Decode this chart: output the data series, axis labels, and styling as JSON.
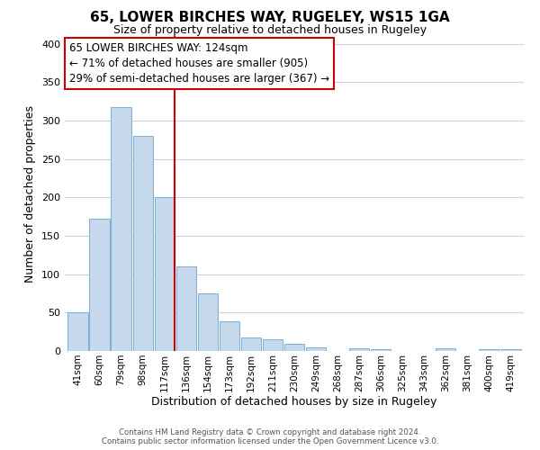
{
  "title": "65, LOWER BIRCHES WAY, RUGELEY, WS15 1GA",
  "subtitle": "Size of property relative to detached houses in Rugeley",
  "xlabel": "Distribution of detached houses by size in Rugeley",
  "ylabel": "Number of detached properties",
  "bar_labels": [
    "41sqm",
    "60sqm",
    "79sqm",
    "98sqm",
    "117sqm",
    "136sqm",
    "154sqm",
    "173sqm",
    "192sqm",
    "211sqm",
    "230sqm",
    "249sqm",
    "268sqm",
    "287sqm",
    "306sqm",
    "325sqm",
    "343sqm",
    "362sqm",
    "381sqm",
    "400sqm",
    "419sqm"
  ],
  "bar_values": [
    50,
    172,
    318,
    280,
    200,
    110,
    75,
    39,
    17,
    15,
    9,
    5,
    0,
    3,
    2,
    0,
    0,
    3,
    0,
    2,
    2
  ],
  "bar_color": "#c6d9ec",
  "bar_edge_color": "#7bafd4",
  "highlight_bar_index": 4,
  "highlight_color": "#cc0000",
  "ylim": [
    0,
    410
  ],
  "yticks": [
    0,
    50,
    100,
    150,
    200,
    250,
    300,
    350,
    400
  ],
  "annotation_title": "65 LOWER BIRCHES WAY: 124sqm",
  "annotation_line1": "← 71% of detached houses are smaller (905)",
  "annotation_line2": "29% of semi-detached houses are larger (367) →",
  "annotation_box_color": "#ffffff",
  "annotation_box_edge": "#cc0000",
  "footer1": "Contains HM Land Registry data © Crown copyright and database right 2024.",
  "footer2": "Contains public sector information licensed under the Open Government Licence v3.0.",
  "bg_color": "#ffffff",
  "grid_color": "#c8d4e8"
}
